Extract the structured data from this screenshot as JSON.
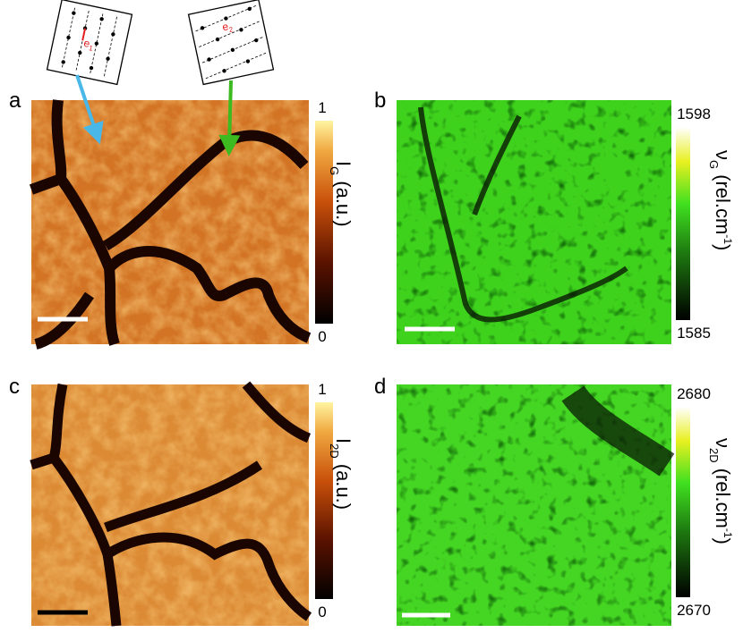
{
  "panels": [
    {
      "label": "a",
      "clim": [
        0,
        1
      ],
      "cticks": [
        1,
        0
      ],
      "cbar_label": {
        "main": "I",
        "sub": "G",
        "unit": "(a.u.)",
        "sup": null,
        "close": null
      }
    },
    {
      "label": "b",
      "clim": [
        1585,
        1598
      ],
      "cticks": [
        1598,
        1585
      ],
      "cbar_label": {
        "main": "ν",
        "sub": "G",
        "unit": "(rel.cm",
        "sup": "-1",
        "close": ")"
      }
    },
    {
      "label": "c",
      "clim": [
        0,
        1
      ],
      "cticks": [
        1,
        0
      ],
      "cbar_label": {
        "main": "I",
        "sub": "2D",
        "unit": "(a.u.)",
        "sup": null,
        "close": null
      }
    },
    {
      "label": "d",
      "clim": [
        2670,
        2680
      ],
      "cticks": [
        2680,
        2670
      ],
      "cbar_label": {
        "main": "ν",
        "sub": "2D",
        "unit": "(rel.cm",
        "sup": "-1",
        "close": ")"
      }
    }
  ],
  "insets": [
    {
      "label": "e",
      "sub": "1"
    },
    {
      "label": "e",
      "sub": "2"
    }
  ]
}
